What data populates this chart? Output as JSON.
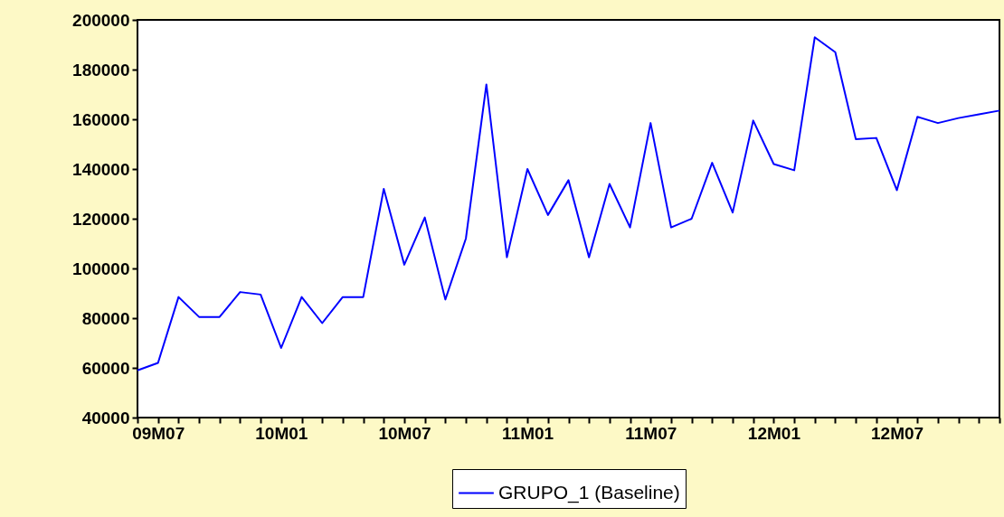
{
  "chart_data": {
    "type": "line",
    "categories": [
      null,
      "09M07",
      null,
      null,
      null,
      null,
      null,
      "10M01",
      null,
      null,
      null,
      null,
      null,
      "10M07",
      null,
      null,
      null,
      null,
      null,
      "11M01",
      null,
      null,
      null,
      null,
      null,
      "11M07",
      null,
      null,
      null,
      null,
      null,
      "12M01",
      null,
      null,
      null,
      null,
      null,
      "12M07",
      null,
      null,
      null,
      null,
      null
    ],
    "series": [
      {
        "name": "GRUPO_1 (Baseline)",
        "color": "#0000ff",
        "values": [
          59000,
          62000,
          88500,
          80500,
          80500,
          90500,
          89500,
          68000,
          88500,
          78000,
          88500,
          88500,
          132000,
          101500,
          120500,
          87500,
          112000,
          174000,
          104500,
          140000,
          121500,
          135500,
          104500,
          134000,
          116500,
          158500,
          116500,
          120000,
          142500,
          122500,
          159500,
          142000,
          139500,
          193000,
          187000,
          152000,
          152500,
          131500,
          161000,
          158500,
          160500,
          162000,
          163500
        ]
      }
    ],
    "ylim": [
      40000,
      200000
    ],
    "yticks": [
      40000,
      60000,
      80000,
      100000,
      120000,
      140000,
      160000,
      180000,
      200000
    ],
    "legend": "bottom",
    "marker": "none",
    "line_style": "solid"
  }
}
